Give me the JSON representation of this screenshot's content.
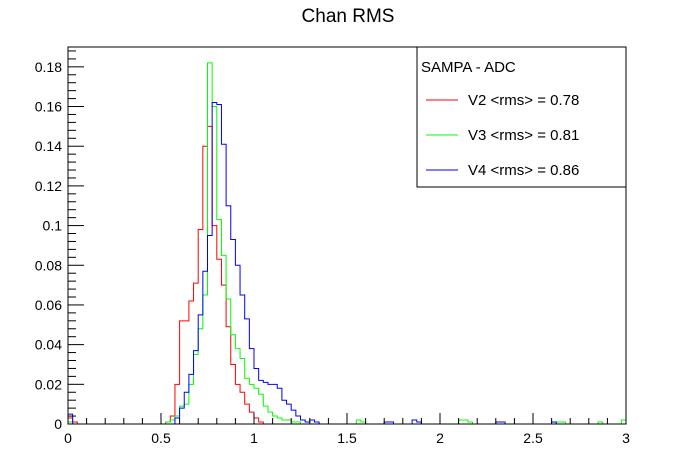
{
  "chart_data": {
    "type": "line",
    "title": "Chan RMS",
    "xlabel": "",
    "ylabel": "",
    "xlim": [
      0,
      3
    ],
    "ylim": [
      0,
      0.19
    ],
    "x_ticks": [
      0,
      0.5,
      1,
      1.5,
      2,
      2.5,
      3
    ],
    "x_tick_labels": [
      "0",
      "0.5",
      "1",
      "1.5",
      "2",
      "2.5",
      "3"
    ],
    "y_ticks": [
      0,
      0.02,
      0.04,
      0.06,
      0.08,
      0.1,
      0.12,
      0.14,
      0.16,
      0.18
    ],
    "y_tick_labels": [
      "0",
      "0.02",
      "0.04",
      "0.06",
      "0.08",
      "0.1",
      "0.12",
      "0.14",
      "0.16",
      "0.18"
    ],
    "grid": false,
    "legend": {
      "position": "top-right",
      "header": "SAMPA - ADC"
    },
    "bin_width": 0.025,
    "series": [
      {
        "name": "V2 <rms> = 0.78",
        "color": "#ff0000",
        "bins": [
          [
            0.0,
            0.003
          ],
          [
            0.025,
            0.001
          ],
          [
            0.525,
            0.001
          ],
          [
            0.55,
            0.004
          ],
          [
            0.575,
            0.02
          ],
          [
            0.6,
            0.052
          ],
          [
            0.625,
            0.052
          ],
          [
            0.65,
            0.062
          ],
          [
            0.675,
            0.071
          ],
          [
            0.7,
            0.098
          ],
          [
            0.725,
            0.14
          ],
          [
            0.75,
            0.15
          ],
          [
            0.775,
            0.1
          ],
          [
            0.8,
            0.083
          ],
          [
            0.825,
            0.07
          ],
          [
            0.85,
            0.049
          ],
          [
            0.875,
            0.03
          ],
          [
            0.9,
            0.02
          ],
          [
            0.925,
            0.016
          ],
          [
            0.95,
            0.01
          ],
          [
            0.975,
            0.006
          ],
          [
            1.0,
            0.003
          ],
          [
            1.025,
            0.001
          ]
        ]
      },
      {
        "name": "V3 <rms> = 0.81",
        "color": "#00ff00",
        "bins": [
          [
            0.0,
            0.001
          ],
          [
            0.525,
            0.001
          ],
          [
            0.55,
            0.002
          ],
          [
            0.575,
            0.004
          ],
          [
            0.6,
            0.009
          ],
          [
            0.625,
            0.01
          ],
          [
            0.65,
            0.02
          ],
          [
            0.675,
            0.035
          ],
          [
            0.7,
            0.048
          ],
          [
            0.725,
            0.065
          ],
          [
            0.75,
            0.182
          ],
          [
            0.775,
            0.16
          ],
          [
            0.8,
            0.103
          ],
          [
            0.825,
            0.085
          ],
          [
            0.85,
            0.063
          ],
          [
            0.875,
            0.045
          ],
          [
            0.9,
            0.038
          ],
          [
            0.925,
            0.033
          ],
          [
            0.95,
            0.023
          ],
          [
            0.975,
            0.02
          ],
          [
            1.0,
            0.018
          ],
          [
            1.025,
            0.015
          ],
          [
            1.05,
            0.009
          ],
          [
            1.075,
            0.006
          ],
          [
            1.1,
            0.004
          ],
          [
            1.125,
            0.003
          ],
          [
            1.15,
            0.002
          ],
          [
            1.175,
            0.002
          ],
          [
            1.2,
            0.001
          ],
          [
            1.225,
            0.001
          ],
          [
            1.55,
            0.002
          ],
          [
            1.575,
            0.001
          ],
          [
            2.1,
            0.002
          ],
          [
            2.125,
            0.002
          ],
          [
            2.15,
            0.001
          ],
          [
            2.625,
            0.001
          ],
          [
            2.65,
            0.001
          ],
          [
            2.85,
            0.001
          ],
          [
            2.975,
            0.002
          ]
        ]
      },
      {
        "name": "V4 <rms> = 0.86",
        "color": "#0000ff",
        "bins": [
          [
            0.0,
            0.005
          ],
          [
            0.575,
            0.003
          ],
          [
            0.6,
            0.008
          ],
          [
            0.625,
            0.016
          ],
          [
            0.65,
            0.025
          ],
          [
            0.675,
            0.037
          ],
          [
            0.7,
            0.055
          ],
          [
            0.725,
            0.077
          ],
          [
            0.75,
            0.095
          ],
          [
            0.775,
            0.162
          ],
          [
            0.8,
            0.161
          ],
          [
            0.825,
            0.141
          ],
          [
            0.85,
            0.11
          ],
          [
            0.875,
            0.093
          ],
          [
            0.9,
            0.08
          ],
          [
            0.925,
            0.065
          ],
          [
            0.95,
            0.053
          ],
          [
            0.975,
            0.038
          ],
          [
            1.0,
            0.028
          ],
          [
            1.025,
            0.022
          ],
          [
            1.05,
            0.021
          ],
          [
            1.075,
            0.02
          ],
          [
            1.1,
            0.02
          ],
          [
            1.125,
            0.018
          ],
          [
            1.15,
            0.012
          ],
          [
            1.175,
            0.01
          ],
          [
            1.2,
            0.007
          ],
          [
            1.225,
            0.004
          ],
          [
            1.25,
            0.002
          ],
          [
            1.275,
            0.001
          ],
          [
            1.3,
            0.002
          ],
          [
            1.325,
            0.001
          ],
          [
            1.7,
            0.001
          ],
          [
            1.725,
            0.001
          ],
          [
            1.85,
            0.002
          ],
          [
            1.875,
            0.001
          ],
          [
            2.3,
            0.001
          ],
          [
            2.325,
            0.001
          ],
          [
            2.6,
            0.001
          ]
        ]
      }
    ]
  }
}
